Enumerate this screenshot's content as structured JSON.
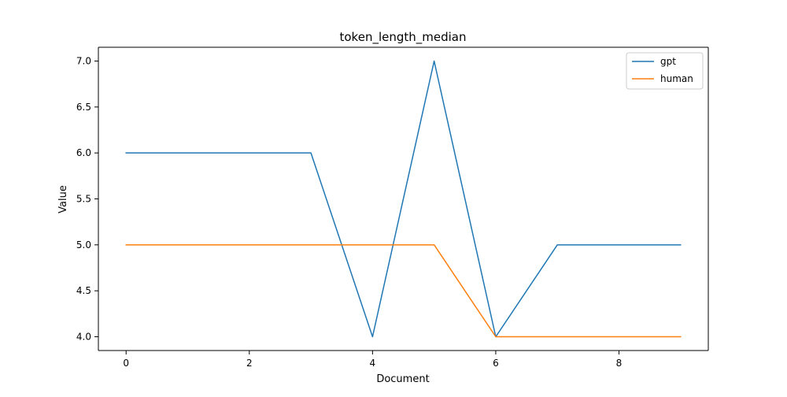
{
  "chart_data": {
    "type": "line",
    "title": "token_length_median",
    "xlabel": "Document",
    "ylabel": "Value",
    "x": [
      0,
      1,
      2,
      3,
      4,
      5,
      6,
      7,
      8,
      9
    ],
    "xlim": [
      -0.45,
      9.45
    ],
    "ylim": [
      3.85,
      7.15
    ],
    "xticks": [
      0,
      2,
      4,
      6,
      8
    ],
    "xtick_labels": [
      "0",
      "2",
      "4",
      "6",
      "8"
    ],
    "yticks": [
      4.0,
      4.5,
      5.0,
      5.5,
      6.0,
      6.5,
      7.0
    ],
    "ytick_labels": [
      "4.0",
      "4.5",
      "5.0",
      "5.5",
      "6.0",
      "6.5",
      "7.0"
    ],
    "grid": false,
    "legend_position": "top-right",
    "series": [
      {
        "name": "gpt",
        "color": "#1f77b4",
        "values": [
          6,
          6,
          6,
          6,
          4,
          7,
          4,
          5,
          5,
          5
        ]
      },
      {
        "name": "human",
        "color": "#ff7f0e",
        "values": [
          5,
          5,
          5,
          5,
          5,
          5,
          4,
          4,
          4,
          4
        ]
      }
    ]
  }
}
